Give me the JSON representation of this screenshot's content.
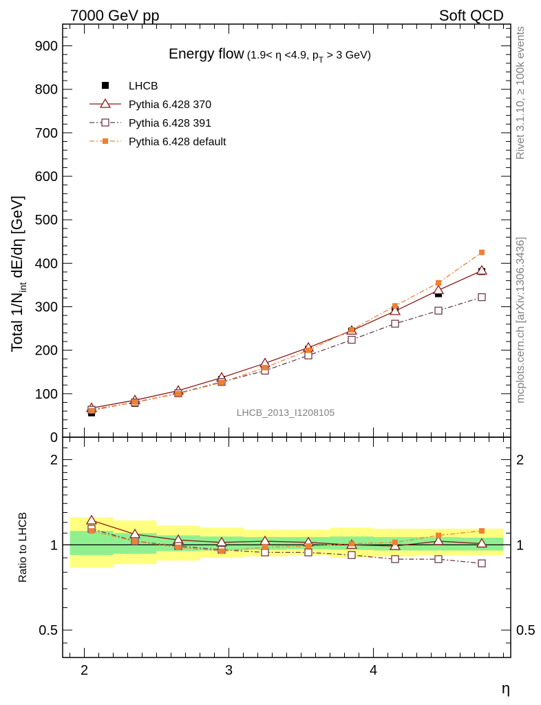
{
  "header": {
    "left": "7000 GeV pp",
    "right": "Soft QCD"
  },
  "side_labels": {
    "rivet": "Rivet 3.1.10, ≥ 100k events",
    "mcplots": "mcplots.cern.ch [arXiv:1306.3436]"
  },
  "chart_data": [
    {
      "type": "scatter",
      "title": "Energy flow",
      "subtitle_parts": [
        "(1.9< η <4.9, p",
        "T",
        " > 3 GeV)"
      ],
      "ylabel_parts": [
        "Total 1/N",
        "int",
        " dE/dη [GeV]"
      ],
      "xlabel": "η",
      "analysis_label": "LHCB_2013_I1208105",
      "xlim": [
        1.85,
        4.95
      ],
      "ylim": [
        0,
        950
      ],
      "y_ticks": [
        0,
        100,
        200,
        300,
        400,
        500,
        600,
        700,
        800,
        900
      ],
      "x_ticks": [
        2,
        3,
        4
      ],
      "legend_position": "top-left",
      "x": [
        2.05,
        2.35,
        2.65,
        2.95,
        3.25,
        3.55,
        3.85,
        4.15,
        4.45,
        4.75
      ],
      "series": [
        {
          "name": "LHCB",
          "color": "#000000",
          "marker": "filled-square",
          "line": "none",
          "values": [
            56,
            78,
            102,
            133,
            163,
            202,
            244,
            293,
            330,
            381
          ]
        },
        {
          "name": "Pythia 6.428 370",
          "color": "#8b1a1a",
          "marker": "open-triangle",
          "line": "solid",
          "values": [
            67,
            85,
            107,
            137,
            170,
            206,
            245,
            290,
            338,
            383
          ]
        },
        {
          "name": "Pythia 6.428 391",
          "color": "#6b3a4a",
          "marker": "open-square",
          "line": "dashdot",
          "values": [
            63,
            80,
            101,
            127,
            153,
            188,
            224,
            261,
            291,
            322
          ]
        },
        {
          "name": "Pythia 6.428 default",
          "color": "#f08030",
          "marker": "small-filled-square",
          "line": "dashdot",
          "values": [
            61,
            81,
            100,
            126,
            160,
            200,
            247,
            302,
            355,
            425
          ]
        }
      ]
    },
    {
      "type": "scatter",
      "ylabel": "Ratio to LHCB",
      "xlabel": "η",
      "xlim": [
        1.85,
        4.95
      ],
      "ylim": [
        0.4,
        2.4
      ],
      "y_scale": "log",
      "y_tick_labels": [
        {
          "value": 0.5,
          "label": "0.5"
        },
        {
          "value": 1,
          "label": "1"
        },
        {
          "value": 2,
          "label": "2"
        }
      ],
      "x_ticks": [
        2,
        3,
        4
      ],
      "reference_line": 1,
      "bins": [
        1.9,
        2.2,
        2.5,
        2.8,
        3.1,
        3.4,
        3.7,
        4.0,
        4.3,
        4.6,
        4.9
      ],
      "uncertainty_bands": [
        {
          "name": "stat",
          "color": "#90f090",
          "low": [
            0.92,
            0.93,
            0.95,
            0.955,
            0.96,
            0.965,
            0.96,
            0.955,
            0.955,
            0.955
          ],
          "high": [
            1.12,
            1.1,
            1.08,
            1.07,
            1.065,
            1.065,
            1.07,
            1.065,
            1.065,
            1.06
          ]
        },
        {
          "name": "total",
          "color": "#ffff80",
          "low": [
            0.83,
            0.855,
            0.88,
            0.9,
            0.91,
            0.92,
            0.9,
            0.91,
            0.92,
            0.92
          ],
          "high": [
            1.25,
            1.22,
            1.17,
            1.15,
            1.13,
            1.13,
            1.15,
            1.14,
            1.14,
            1.14
          ]
        }
      ],
      "x": [
        2.05,
        2.35,
        2.65,
        2.95,
        3.25,
        3.55,
        3.85,
        4.15,
        4.45,
        4.75
      ],
      "series": [
        {
          "name": "Pythia 6.428 370",
          "color": "#8b1a1a",
          "marker": "open-triangle",
          "line": "solid",
          "values": [
            1.22,
            1.09,
            1.04,
            1.02,
            1.03,
            1.02,
            1.0,
            0.99,
            1.03,
            1.01
          ]
        },
        {
          "name": "Pythia 6.428 391",
          "color": "#6b3a4a",
          "marker": "open-square",
          "line": "dashdot",
          "values": [
            1.14,
            1.03,
            0.99,
            0.96,
            0.94,
            0.94,
            0.92,
            0.89,
            0.89,
            0.86
          ]
        },
        {
          "name": "Pythia 6.428 default",
          "color": "#f08030",
          "marker": "small-filled-square",
          "line": "dashdot",
          "values": [
            1.12,
            1.03,
            0.98,
            0.95,
            0.98,
            0.99,
            1.01,
            1.02,
            1.08,
            1.12
          ]
        }
      ]
    }
  ]
}
